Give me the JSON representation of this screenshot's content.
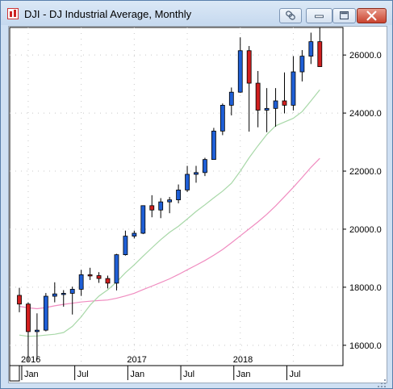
{
  "window": {
    "title": "DJI - DJ Industrial Average, Monthly",
    "buttons": [
      "link-icon",
      "minimize-icon",
      "maximize-icon",
      "close-icon"
    ]
  },
  "colors": {
    "up": "#1f5fd6",
    "down": "#d11f1f",
    "ma_short": "#a8d8a8",
    "ma_long": "#f08cc0",
    "grid": "#c8c8c8"
  },
  "chart_data": {
    "type": "candlestick",
    "y_ticks": [
      "16000.0",
      "18000.0",
      "20000.0",
      "22000.0",
      "24000.0",
      "26000.0"
    ],
    "y_tick_values": [
      16000,
      18000,
      20000,
      22000,
      24000,
      26000
    ],
    "ylim": [
      15300,
      26950
    ],
    "x_major": [
      {
        "label": "2016",
        "index": 1
      },
      {
        "label": "2017",
        "index": 13
      },
      {
        "label": "2018",
        "index": 25
      }
    ],
    "x_minor": [
      {
        "label": "Jan",
        "index": 1
      },
      {
        "label": "Jul",
        "index": 7
      },
      {
        "label": "Jan",
        "index": 13
      },
      {
        "label": "Jul",
        "index": 19
      },
      {
        "label": "Jan",
        "index": 25
      },
      {
        "label": "Jul",
        "index": 31
      }
    ],
    "candles": [
      {
        "o": 17720,
        "h": 17980,
        "l": 17140,
        "c": 17420
      },
      {
        "o": 17420,
        "h": 17480,
        "l": 15450,
        "c": 16470
      },
      {
        "o": 16470,
        "h": 17100,
        "l": 15500,
        "c": 16520
      },
      {
        "o": 16520,
        "h": 17800,
        "l": 16480,
        "c": 17690
      },
      {
        "o": 17690,
        "h": 18170,
        "l": 17480,
        "c": 17770
      },
      {
        "o": 17770,
        "h": 17900,
        "l": 17330,
        "c": 17790
      },
      {
        "o": 17790,
        "h": 18020,
        "l": 17060,
        "c": 17930
      },
      {
        "o": 17930,
        "h": 18600,
        "l": 17700,
        "c": 18430
      },
      {
        "o": 18430,
        "h": 18670,
        "l": 18250,
        "c": 18400
      },
      {
        "o": 18400,
        "h": 18520,
        "l": 18150,
        "c": 18300
      },
      {
        "o": 18300,
        "h": 18400,
        "l": 17960,
        "c": 18140
      },
      {
        "o": 18140,
        "h": 19150,
        "l": 17890,
        "c": 19120
      },
      {
        "o": 19120,
        "h": 19950,
        "l": 19090,
        "c": 19760
      },
      {
        "o": 19760,
        "h": 19950,
        "l": 19680,
        "c": 19860
      },
      {
        "o": 19860,
        "h": 20820,
        "l": 19830,
        "c": 20810
      },
      {
        "o": 20810,
        "h": 21170,
        "l": 20410,
        "c": 20660
      },
      {
        "o": 20660,
        "h": 21070,
        "l": 20380,
        "c": 20940
      },
      {
        "o": 20940,
        "h": 21110,
        "l": 20550,
        "c": 21010
      },
      {
        "o": 21010,
        "h": 21540,
        "l": 20890,
        "c": 21350
      },
      {
        "o": 21350,
        "h": 22180,
        "l": 21280,
        "c": 21890
      },
      {
        "o": 21890,
        "h": 22180,
        "l": 21600,
        "c": 21950
      },
      {
        "o": 21950,
        "h": 22460,
        "l": 21830,
        "c": 22400
      },
      {
        "o": 22400,
        "h": 23490,
        "l": 22390,
        "c": 23380
      },
      {
        "o": 23380,
        "h": 24330,
        "l": 23240,
        "c": 24270
      },
      {
        "o": 24270,
        "h": 24880,
        "l": 23920,
        "c": 24720
      },
      {
        "o": 24720,
        "h": 26610,
        "l": 24700,
        "c": 26150
      },
      {
        "o": 26150,
        "h": 26310,
        "l": 23360,
        "c": 25030
      },
      {
        "o": 25030,
        "h": 25450,
        "l": 23510,
        "c": 24100
      },
      {
        "o": 24100,
        "h": 24860,
        "l": 23340,
        "c": 24160
      },
      {
        "o": 24160,
        "h": 24860,
        "l": 23530,
        "c": 24420
      },
      {
        "o": 24420,
        "h": 25400,
        "l": 23990,
        "c": 24270
      },
      {
        "o": 24270,
        "h": 25960,
        "l": 24090,
        "c": 25420
      },
      {
        "o": 25420,
        "h": 26170,
        "l": 25090,
        "c": 25960
      },
      {
        "o": 25960,
        "h": 26770,
        "l": 25690,
        "c": 26460
      },
      {
        "o": 26460,
        "h": 26950,
        "l": 25590,
        "c": 25600
      }
    ],
    "ma_short": [
      16350,
      16310,
      16320,
      16350,
      16380,
      16440,
      16650,
      16980,
      17380,
      17690,
      17910,
      18180,
      18500,
      18770,
      19070,
      19360,
      19640,
      19890,
      20100,
      20350,
      20610,
      20840,
      21080,
      21310,
      21580,
      22000,
      22460,
      22870,
      23260,
      23560,
      23690,
      23820,
      24050,
      24420,
      24800
    ],
    "ma_long": [
      17340,
      17290,
      17260,
      17300,
      17360,
      17410,
      17450,
      17490,
      17520,
      17540,
      17560,
      17620,
      17700,
      17790,
      17920,
      18040,
      18160,
      18290,
      18440,
      18600,
      18760,
      18920,
      19100,
      19300,
      19530,
      19770,
      20010,
      20250,
      20510,
      20800,
      21120,
      21440,
      21780,
      22130,
      22440
    ]
  }
}
